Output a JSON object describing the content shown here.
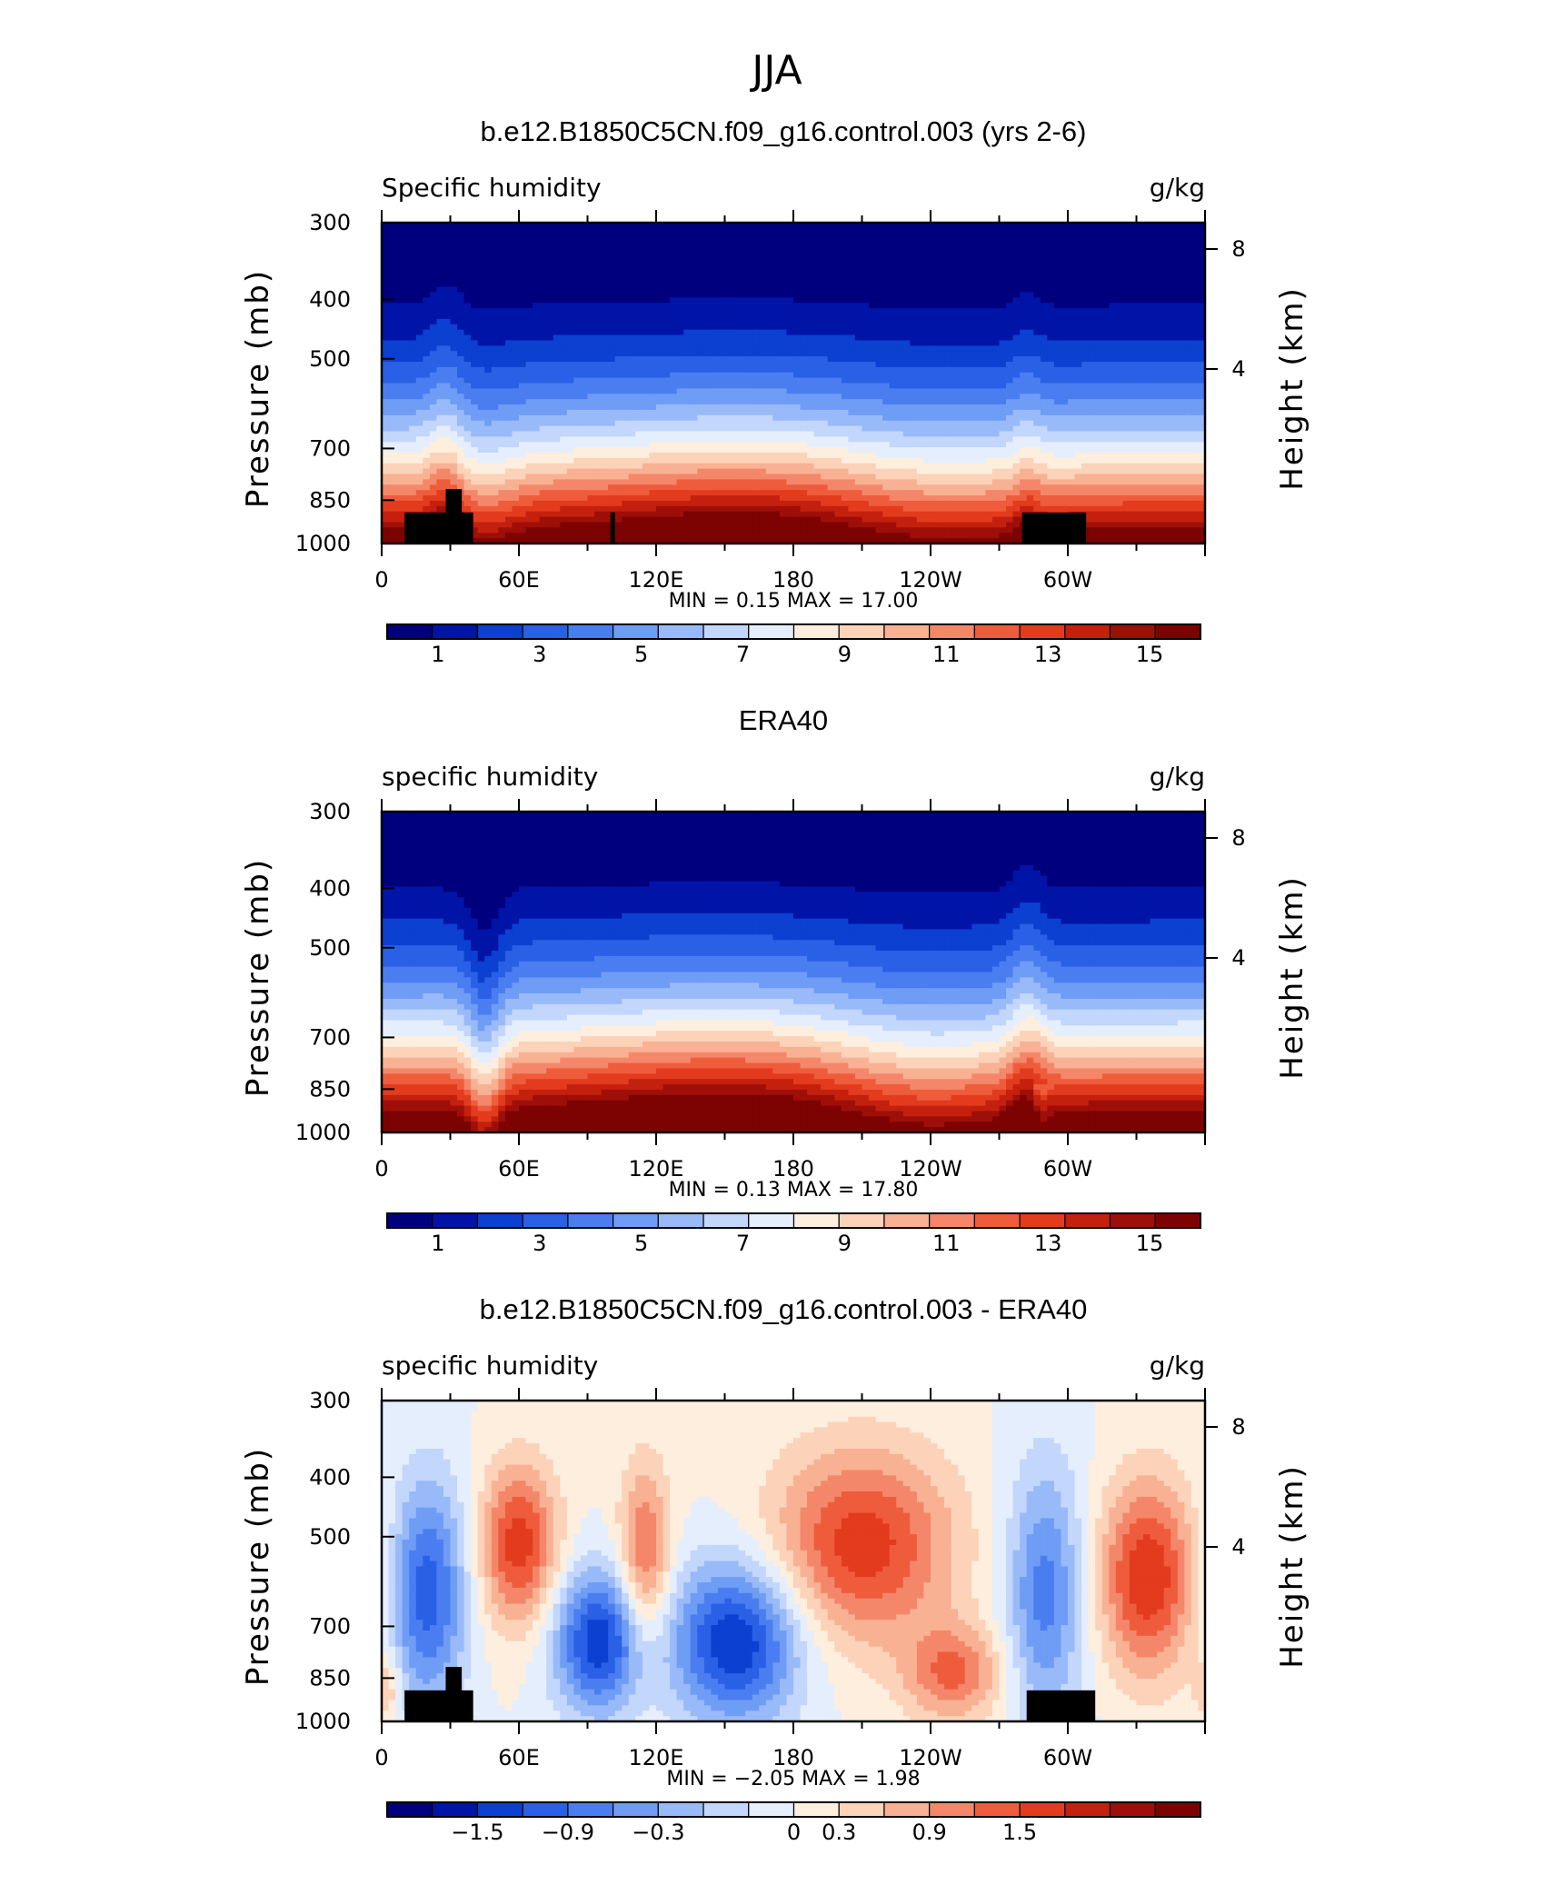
{
  "figure": {
    "title": "JJA"
  },
  "colors": {
    "positive_levels": [
      "#00007f",
      "#0014a8",
      "#0b40d0",
      "#2a60e6",
      "#4a7ef0",
      "#6f9cf4",
      "#98baf8",
      "#c3d6fb",
      "#e5eefc",
      "#fdeede",
      "#fcd2b9",
      "#f8b192",
      "#f4876a",
      "#ef5c3c",
      "#e33b1e",
      "#c4200e",
      "#9e0f09",
      "#7d0303"
    ],
    "diff_levels": [
      "#00007f",
      "#0014a8",
      "#0b40d0",
      "#2a60e6",
      "#4a7ef0",
      "#6f9cf4",
      "#98baf8",
      "#c3d6fb",
      "#e5eefc",
      "#fdeede",
      "#fcd2b9",
      "#f8b192",
      "#f4876a",
      "#ef5c3c",
      "#e33b1e",
      "#c4200e",
      "#9e0f09",
      "#7d0303"
    ],
    "terrain": "#000000"
  },
  "chart_data": [
    {
      "type": "heatmap",
      "title": "b.e12.B1850C5CN.f09_g16.control.003 (yrs 2-6)",
      "left_label": "Specific humidity",
      "right_label": "g/kg",
      "ylabel": "Pressure (mb)",
      "ylabel_right": "Height (km)",
      "x_tick_labels": [
        "0",
        "60E",
        "120E",
        "180",
        "120W",
        "60W"
      ],
      "x_ticks_deg": [
        0,
        60,
        120,
        180,
        240,
        300
      ],
      "xlim": [
        0,
        360
      ],
      "y_tick_labels": [
        "300",
        "400",
        "500",
        "700",
        "850",
        "1000"
      ],
      "y_ticks": [
        300,
        400,
        500,
        700,
        850,
        1000
      ],
      "ylim": [
        300,
        1000
      ],
      "y_right_tick_labels": [
        "8",
        "4"
      ],
      "y_right_ticks_km": [
        8,
        4
      ],
      "stats_text": "MIN =     0.15   MAX =    17.00",
      "colorbar_labels": [
        "1",
        "3",
        "5",
        "7",
        "9",
        "11",
        "13",
        "15"
      ],
      "colorbar_levels": [
        1,
        3,
        5,
        7,
        9,
        11,
        13,
        15
      ],
      "levels_range": [
        0,
        16
      ],
      "terrain_blocks": [
        [
          10,
          40,
          890
        ],
        [
          28,
          35,
          815
        ],
        [
          100,
          102,
          890
        ],
        [
          280,
          308,
          890
        ]
      ]
    },
    {
      "type": "heatmap",
      "title": "ERA40",
      "left_label": "specific humidity",
      "right_label": "g/kg",
      "ylabel": "Pressure (mb)",
      "ylabel_right": "Height (km)",
      "x_tick_labels": [
        "0",
        "60E",
        "120E",
        "180",
        "120W",
        "60W"
      ],
      "x_ticks_deg": [
        0,
        60,
        120,
        180,
        240,
        300
      ],
      "xlim": [
        0,
        360
      ],
      "y_tick_labels": [
        "300",
        "400",
        "500",
        "700",
        "850",
        "1000"
      ],
      "y_ticks": [
        300,
        400,
        500,
        700,
        850,
        1000
      ],
      "ylim": [
        300,
        1000
      ],
      "y_right_tick_labels": [
        "8",
        "4"
      ],
      "y_right_ticks_km": [
        8,
        4
      ],
      "stats_text": "MIN =     0.13   MAX =    17.80",
      "colorbar_labels": [
        "1",
        "3",
        "5",
        "7",
        "9",
        "11",
        "13",
        "15"
      ],
      "colorbar_levels": [
        1,
        3,
        5,
        7,
        9,
        11,
        13,
        15
      ],
      "levels_range": [
        0,
        16
      ],
      "terrain_blocks": []
    },
    {
      "type": "heatmap",
      "title": "b.e12.B1850C5CN.f09_g16.control.003 - ERA40",
      "left_label": "specific humidity",
      "right_label": "g/kg",
      "ylabel": "Pressure (mb)",
      "ylabel_right": "Height (km)",
      "x_tick_labels": [
        "0",
        "60E",
        "120E",
        "180",
        "120W",
        "60W"
      ],
      "x_ticks_deg": [
        0,
        60,
        120,
        180,
        240,
        300
      ],
      "xlim": [
        0,
        360
      ],
      "y_tick_labels": [
        "300",
        "400",
        "500",
        "700",
        "850",
        "1000"
      ],
      "y_ticks": [
        300,
        400,
        500,
        700,
        850,
        1000
      ],
      "ylim": [
        300,
        1000
      ],
      "y_right_tick_labels": [
        "8",
        "4"
      ],
      "y_right_ticks_km": [
        8,
        4
      ],
      "stats_text": "MIN =    −2.05   MAX =     1.98",
      "colorbar_labels": [
        "−1.5",
        "−0.9",
        "−0.3",
        "0",
        "0.3",
        "0.9",
        "1.5"
      ],
      "colorbar_levels": [
        -1.5,
        -0.9,
        -0.3,
        0,
        0.3,
        0.9,
        1.5
      ],
      "levels_range": [
        -2.4,
        2.4
      ],
      "terrain_blocks": [
        [
          10,
          40,
          890
        ],
        [
          28,
          35,
          815
        ],
        [
          282,
          312,
          890
        ]
      ]
    }
  ]
}
